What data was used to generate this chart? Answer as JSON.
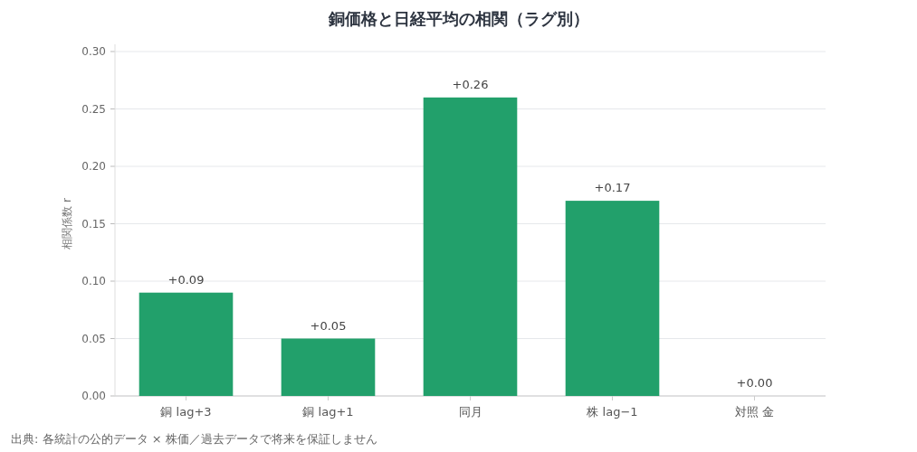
{
  "chart_data": {
    "type": "bar",
    "title": "銅価格と日経平均の相関（ラグ別）",
    "ylabel": "相関係数 r",
    "categories": [
      "銅 lag+3",
      "銅 lag+1",
      "同月",
      "株 lag−1",
      "対照 金"
    ],
    "values": [
      0.09,
      0.05,
      0.26,
      0.17,
      0.0
    ],
    "value_labels": [
      "+0.09",
      "+0.05",
      "+0.26",
      "+0.17",
      "+0.00"
    ],
    "color": "#22a06b",
    "ylim": [
      0,
      0.3
    ],
    "yticks": [
      {
        "value": 0,
        "label": "0.00"
      },
      {
        "value": 0.05,
        "label": "0.05"
      },
      {
        "value": 0.1,
        "label": "0.10"
      },
      {
        "value": 0.15,
        "label": "0.15"
      },
      {
        "value": 0.2,
        "label": "0.20"
      },
      {
        "value": 0.25,
        "label": "0.25"
      },
      {
        "value": 0.3,
        "label": "0.30"
      }
    ],
    "grid": "y",
    "annotations": [
      "出典: 各統計の公的データ × 株価／過去データで将来を保証しません"
    ]
  }
}
